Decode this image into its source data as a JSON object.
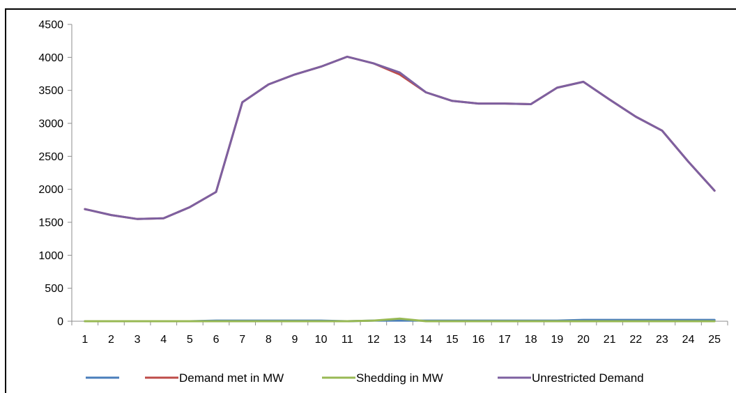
{
  "chart_data": {
    "type": "line",
    "title": "",
    "xlabel": "",
    "ylabel": "",
    "ylim": [
      0,
      4500
    ],
    "yticks": [
      0,
      500,
      1000,
      1500,
      2000,
      2500,
      3000,
      3500,
      4000,
      4500
    ],
    "x": [
      1,
      2,
      3,
      4,
      5,
      6,
      7,
      8,
      9,
      10,
      11,
      12,
      13,
      14,
      15,
      16,
      17,
      18,
      19,
      20,
      21,
      22,
      23,
      24,
      25
    ],
    "grid": false,
    "legend_position": "bottom",
    "series": [
      {
        "name": "",
        "color": "#4a7ebb",
        "values": [
          0,
          0,
          0,
          0,
          0,
          10,
          10,
          10,
          10,
          10,
          0,
          10,
          10,
          10,
          10,
          10,
          10,
          10,
          10,
          20,
          20,
          20,
          20,
          20,
          20
        ]
      },
      {
        "name": "Demand met in MW",
        "color": "#be4b48",
        "values": [
          1700,
          1610,
          1550,
          1560,
          1730,
          1960,
          3320,
          3590,
          3740,
          3860,
          4010,
          3910,
          3740,
          3470,
          3340,
          3300,
          3300,
          3290,
          3540,
          3630,
          3360,
          3100,
          2890,
          2420,
          1980
        ]
      },
      {
        "name": "Shedding in MW",
        "color": "#98b954",
        "values": [
          0,
          0,
          0,
          0,
          0,
          0,
          0,
          0,
          0,
          0,
          0,
          10,
          40,
          0,
          0,
          0,
          0,
          0,
          0,
          0,
          0,
          0,
          0,
          0,
          0
        ]
      },
      {
        "name": "Unrestricted Demand",
        "color": "#7d60a0",
        "values": [
          1700,
          1610,
          1550,
          1560,
          1730,
          1960,
          3320,
          3590,
          3740,
          3860,
          4010,
          3910,
          3770,
          3470,
          3340,
          3300,
          3300,
          3290,
          3540,
          3630,
          3360,
          3100,
          2890,
          2420,
          1980
        ]
      }
    ]
  }
}
